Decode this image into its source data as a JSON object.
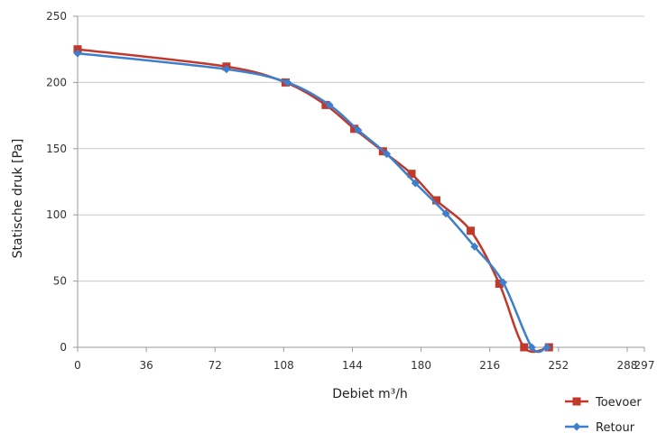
{
  "chart_data": {
    "type": "line",
    "title": "",
    "xlabel": "Debiet m³/h",
    "ylabel": "Statische druk [Pa]",
    "xlim": [
      0,
      297
    ],
    "ylim": [
      0,
      250
    ],
    "x_ticks": [
      "0",
      "36",
      "72",
      "108",
      "144",
      "180",
      "216",
      "252",
      "288",
      "297"
    ],
    "x_tick_values": [
      0,
      36,
      72,
      108,
      144,
      180,
      216,
      252,
      288,
      297
    ],
    "y_ticks": [
      "0",
      "50",
      "100",
      "150",
      "200",
      "250"
    ],
    "y_tick_values": [
      0,
      50,
      100,
      150,
      200,
      250
    ],
    "grid": "horizontal",
    "legend_position": "bottom-right",
    "series": [
      {
        "name": "Toevoer",
        "color": "#c0392b",
        "marker": "square",
        "x": [
          0,
          78,
          109,
          130,
          145,
          160,
          175,
          188,
          206,
          221,
          234,
          247
        ],
        "y": [
          225,
          212,
          200,
          183,
          165,
          148,
          131,
          111,
          88,
          48,
          0,
          0
        ]
      },
      {
        "name": "Retour",
        "color": "#3d7fcc",
        "marker": "diamond",
        "x": [
          0,
          78,
          110,
          132,
          147,
          162,
          177,
          193,
          208,
          223,
          238,
          246
        ],
        "y": [
          222,
          210,
          200,
          183,
          164,
          146,
          124,
          101,
          76,
          49,
          0,
          0
        ]
      }
    ]
  }
}
